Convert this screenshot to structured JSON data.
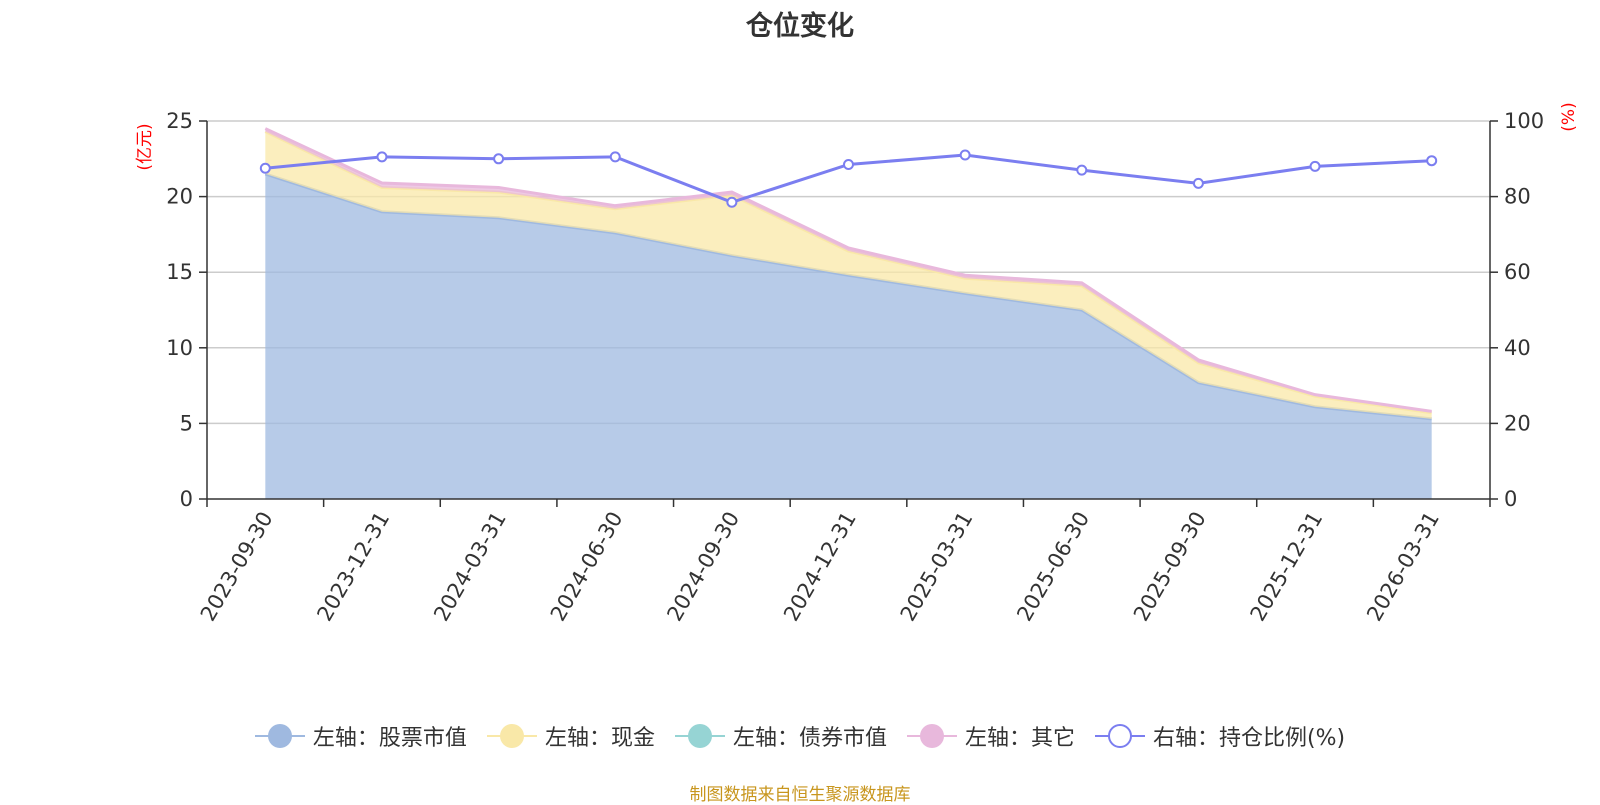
{
  "title": "仓位变化",
  "source": "制图数据来自恒生聚源数据库",
  "chart_data": {
    "type": "area",
    "categories": [
      "2023-09-30",
      "2023-12-31",
      "2024-03-31",
      "2024-06-30",
      "2024-09-30",
      "2024-12-31",
      "2025-03-31",
      "2025-06-30",
      "2025-09-30",
      "2025-12-31",
      "2026-03-31"
    ],
    "stacked": true,
    "left_axis": {
      "unit_label": "(亿元)",
      "ylim": [
        0,
        25
      ],
      "ticks": [
        0,
        5,
        10,
        15,
        20,
        25
      ]
    },
    "right_axis": {
      "unit_label": "(%)",
      "ylim": [
        0,
        100
      ],
      "ticks": [
        0,
        20,
        40,
        60,
        80,
        100
      ]
    },
    "grid": true,
    "legend_position": "bottom",
    "series": [
      {
        "name": "左轴：股票市值",
        "axis": "left",
        "type": "area",
        "color": "#9fb9e0",
        "values": [
          21.5,
          19.0,
          18.6,
          17.6,
          16.1,
          14.8,
          13.6,
          12.5,
          7.7,
          6.1,
          5.3
        ]
      },
      {
        "name": "左轴：现金",
        "axis": "left",
        "type": "area",
        "color": "#f9e8a8",
        "values": [
          2.8,
          1.6,
          1.7,
          1.6,
          4.0,
          1.6,
          1.0,
          1.6,
          1.3,
          0.7,
          0.4
        ]
      },
      {
        "name": "左轴：债券市值",
        "axis": "left",
        "type": "area",
        "color": "#96d4d4",
        "values": [
          0,
          0,
          0,
          0,
          0,
          0,
          0,
          0,
          0,
          0,
          0
        ]
      },
      {
        "name": "左轴：其它",
        "axis": "left",
        "type": "area",
        "color": "#e8b8dc",
        "values": [
          0.2,
          0.3,
          0.3,
          0.2,
          0.2,
          0.2,
          0.2,
          0.2,
          0.2,
          0.1,
          0.1
        ]
      },
      {
        "name": "右轴：持仓比例(%)",
        "axis": "right",
        "type": "line",
        "color": "#7b7ef0",
        "values": [
          87.5,
          90.5,
          90.0,
          90.5,
          78.5,
          88.5,
          91.0,
          87.0,
          83.5,
          88.0,
          89.5
        ]
      }
    ]
  }
}
